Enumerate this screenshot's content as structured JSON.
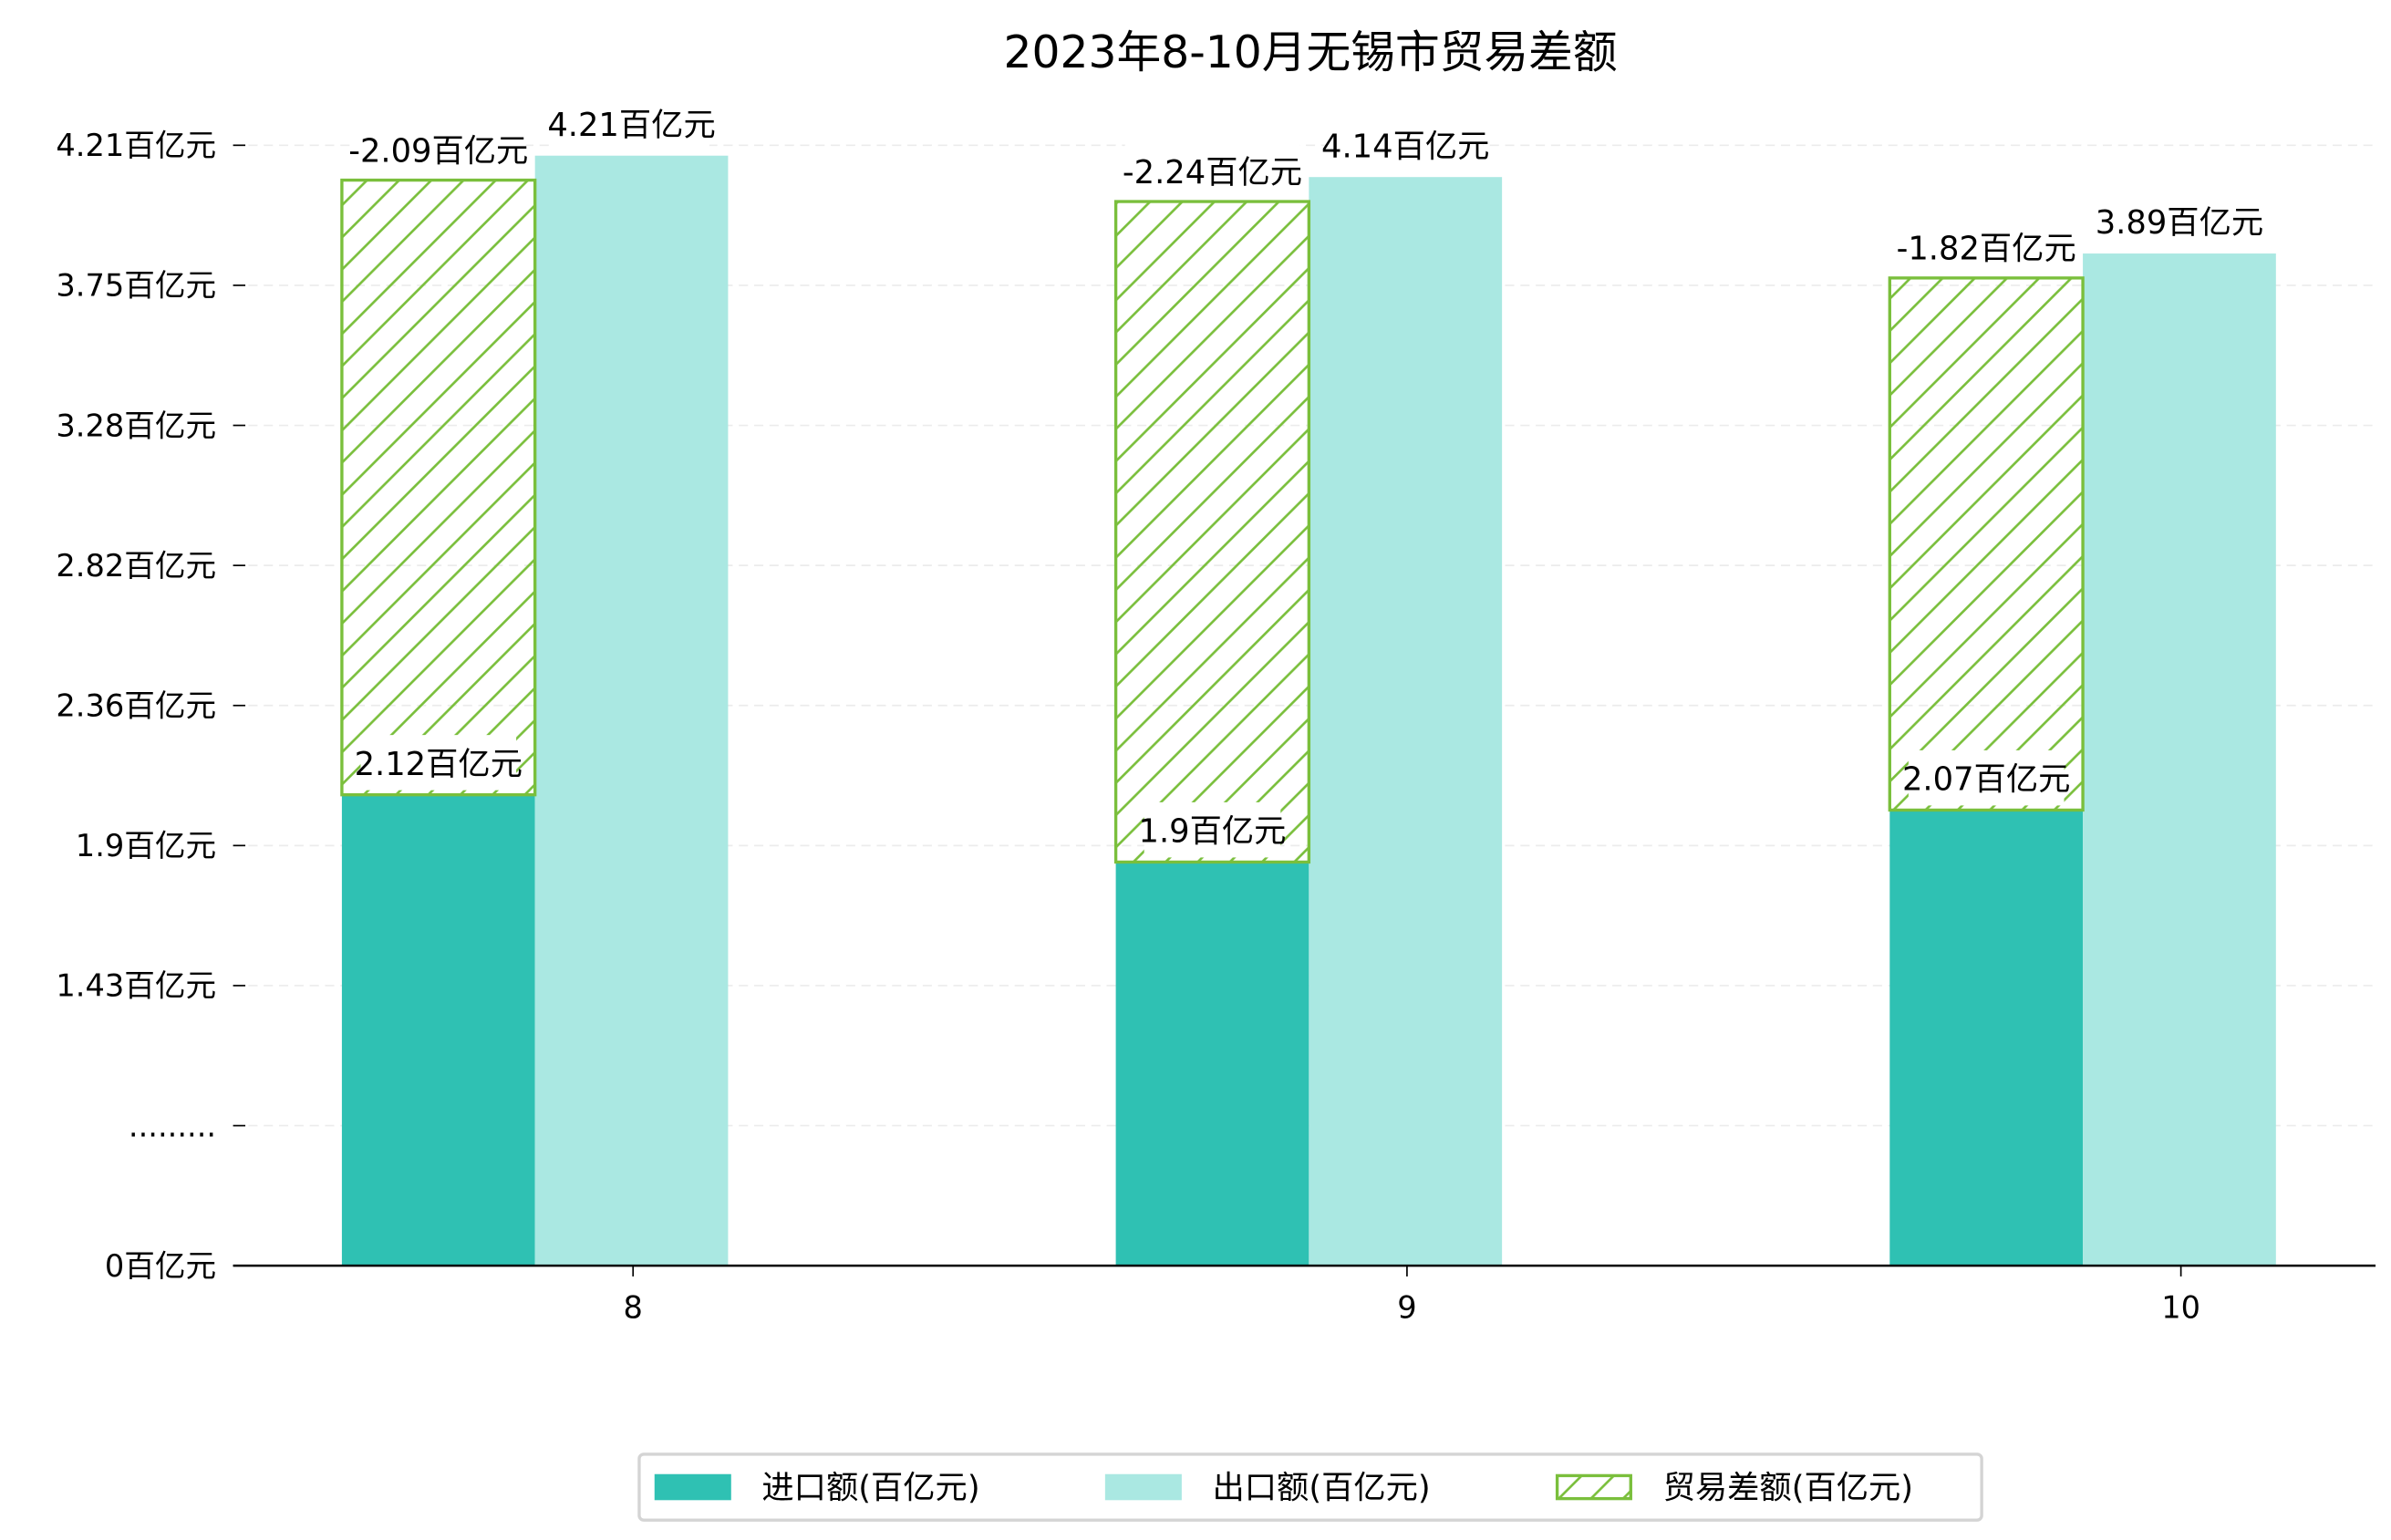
{
  "chart_data": {
    "type": "bar",
    "title": "2023年8-10月无锡市贸易差额",
    "xlabel": "",
    "ylabel": "",
    "categories": [
      "8",
      "9",
      "10"
    ],
    "series": [
      {
        "name": "进口额(百亿元)",
        "values": [
          2.12,
          1.9,
          2.07
        ],
        "labels": [
          "2.12百亿元",
          "1.9百亿元",
          "2.07百亿元"
        ],
        "color": "#2fc1b3"
      },
      {
        "name": "出口额(百亿元)",
        "values": [
          4.21,
          4.14,
          3.89
        ],
        "labels": [
          "4.21百亿元",
          "4.14百亿元",
          "3.89百亿元"
        ],
        "color": "#aae8e2"
      },
      {
        "name": "贸易差额(百亿元)",
        "values": [
          -2.09,
          -2.24,
          -1.82
        ],
        "labels": [
          "-2.09百亿元",
          "-2.24百亿元",
          "-1.82百亿元"
        ],
        "color": "#7abf3c",
        "stacked_on": "进口额(百亿元)",
        "pattern": "hatch"
      }
    ],
    "yticks": [
      "0百亿元",
      ".........",
      "1.43百亿元",
      "1.9百亿元",
      "2.36百亿元",
      "2.82百亿元",
      "3.28百亿元",
      "3.75百亿元",
      "4.21百亿元"
    ],
    "grid": "horizontal-dashed",
    "legend": "bottom-center"
  }
}
